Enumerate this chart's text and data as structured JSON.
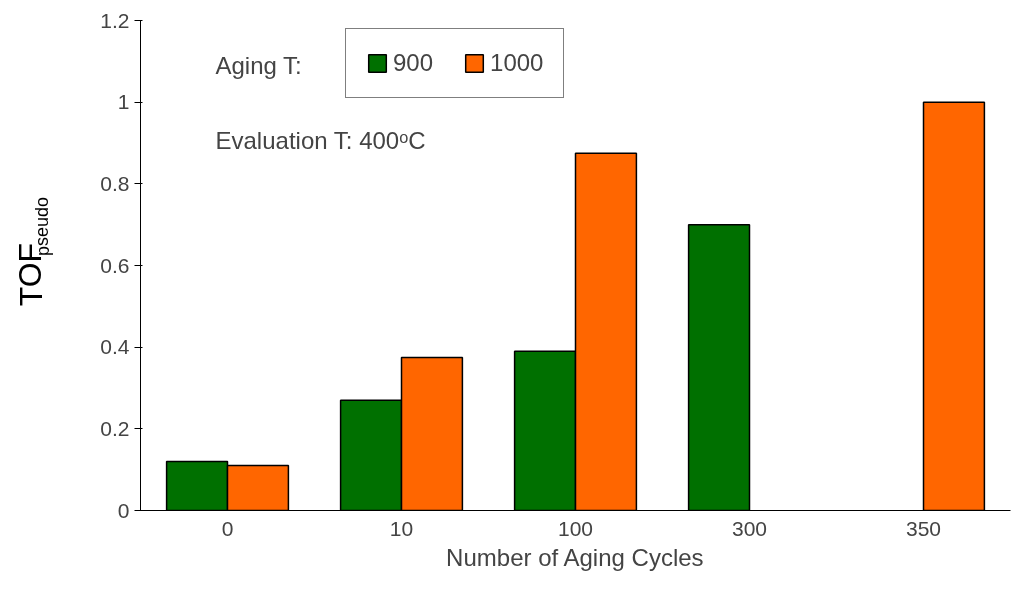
{
  "chart_data": {
    "type": "bar",
    "xlabel": "Number of Aging Cycles",
    "ylabel": "TOF$_{pseudo}$",
    "legend_title": "Aging T:",
    "categories": [
      "0",
      "10",
      "100",
      "300",
      "350"
    ],
    "series": [
      {
        "name": "900",
        "color": "#007000",
        "values": [
          0.12,
          0.27,
          0.39,
          0.7,
          null
        ]
      },
      {
        "name": "1000",
        "color": "#ff6600",
        "values": [
          0.11,
          0.375,
          0.875,
          null,
          1.0
        ]
      }
    ],
    "ylim": [
      0,
      1.2
    ],
    "yticks": [
      0,
      0.2,
      0.4,
      0.6,
      0.8,
      1,
      1.2
    ],
    "grid": false,
    "legend": "top left",
    "annotations": [
      "Evaluation T: 400ᵒC"
    ]
  }
}
